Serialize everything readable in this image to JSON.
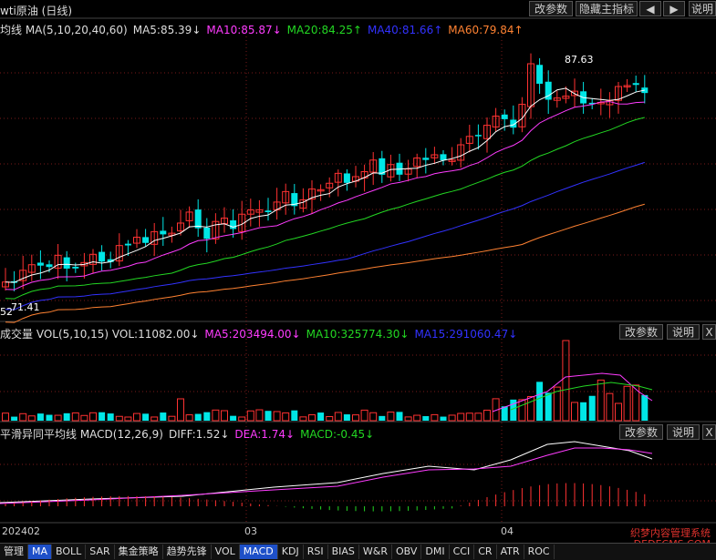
{
  "header": {
    "title": "wti原油 (日线)",
    "buttons": {
      "params": "改参数",
      "hide_main": "隐藏主指标",
      "left": "◀",
      "right": "▶",
      "help": "说明"
    }
  },
  "ma_legend": {
    "label": "均线 MA(5,10,20,40,60)",
    "ma5": "MA5:85.39↓",
    "ma10": "MA10:85.87↓",
    "ma20": "MA20:84.25↑",
    "ma40": "MA40:81.66↑",
    "ma60": "MA60:79.84↑",
    "colors": {
      "ma5": "#ffffff",
      "ma10": "#ff3cff",
      "ma20": "#23d723",
      "ma40": "#3232ff",
      "ma60": "#ff8232"
    }
  },
  "price_labels": {
    "high": "87.63",
    "low": "71.41",
    "low_prefix": "52"
  },
  "vol_panel": {
    "label": "成交量 VOL(5,10,15) VOL:11082.00↓",
    "ma5": "MA5:203494.00↓",
    "ma10": "MA10:325774.30↓",
    "ma15": "MA15:291060.47↓",
    "btn_params": "改参数",
    "btn_help": "说明",
    "btn_close": "X"
  },
  "macd_panel": {
    "label": "平滑异同平均线 MACD(12,26,9)",
    "diff": "DIFF:1.52↓",
    "dea": "DEA:1.74↓",
    "macd": "MACD:-0.45↓",
    "btn_params": "改参数",
    "btn_help": "说明",
    "btn_close": "X"
  },
  "dates": [
    "202402",
    "03",
    "04"
  ],
  "tabs": [
    "管理",
    "MA",
    "BOLL",
    "SAR",
    "集金策略",
    "趋势先锋",
    "VOL",
    "MACD",
    "KDJ",
    "RSI",
    "BIAS",
    "W&R",
    "OBV",
    "DMI",
    "CCI",
    "CR",
    "ATR",
    "ROC"
  ],
  "active_tabs": [
    "MA",
    "MACD"
  ],
  "watermark": {
    "line1": "织梦内容管理系统",
    "line2": "DEDECMS.COM"
  },
  "colors": {
    "up": "#ff3232",
    "down": "#00e6e6",
    "grid": "#7a1a1a"
  }
}
